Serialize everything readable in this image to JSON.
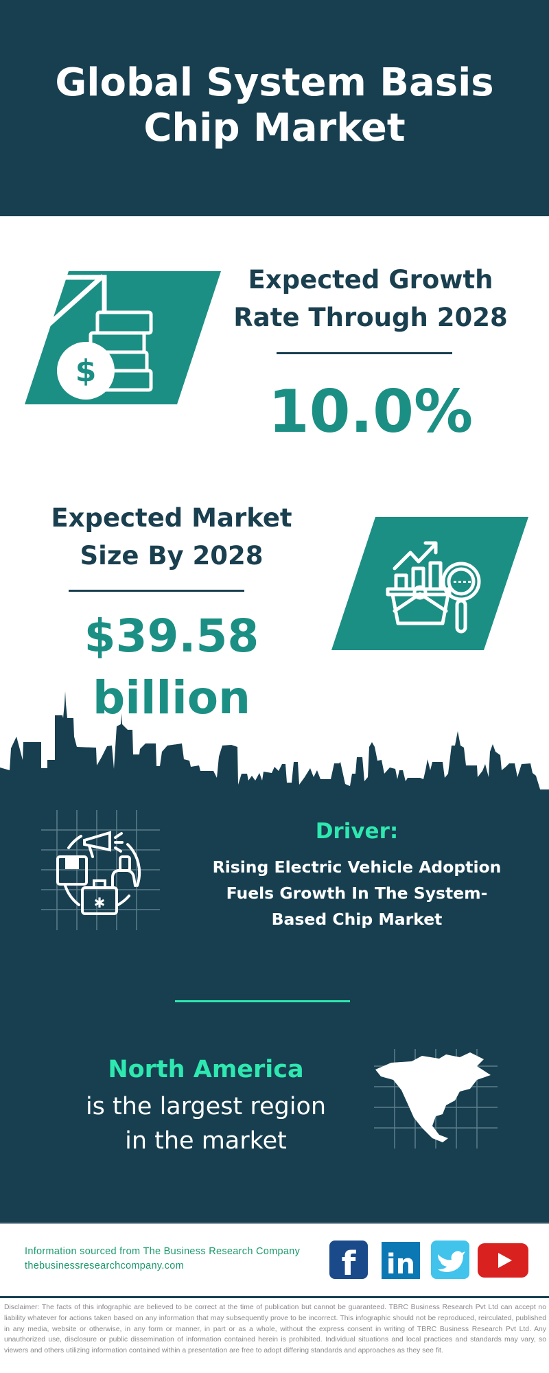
{
  "header": {
    "title_line1": "Global System Basis",
    "title_line2": "Chip Market"
  },
  "growth": {
    "heading_line1": "Expected Growth",
    "heading_line2": "Rate Through 2028",
    "value": "10.0%",
    "icon": "money-growth-icon"
  },
  "market_size": {
    "heading_line1": "Expected Market",
    "heading_line2": "Size By 2028",
    "value": "$39.58 billion",
    "icon": "market-analysis-icon"
  },
  "driver": {
    "label": "Driver:",
    "text_line1": "Rising Electric Vehicle Adoption",
    "text_line2": "Fuels Growth In The System-",
    "text_line3": "Based Chip Market",
    "icon": "marketing-strategy-icon"
  },
  "region": {
    "name": "North America",
    "text_line1": "is the largest region",
    "text_line2": "in the market",
    "icon": "north-america-map-icon"
  },
  "footer": {
    "source": "Information sourced from The Business Research Company",
    "website": "thebusinessresearchcompany.com",
    "social": [
      "facebook",
      "linkedin",
      "twitter",
      "youtube"
    ]
  },
  "disclaimer": "Disclaimer: The facts of this infographic are believed to be correct at the time of publication but cannot be guaranteed. TBRC Business Research Pvt Ltd can accept no liability whatever for actions taken based on any information that may subsequently prove to be incorrect. This infographic should not be reproduced, reirculated, published in any media, website or otherwise, in any form or manner, in part or as a whole, without the express consent in writing of TBRC Business Research Pvt Ltd. Any unauthorized use, disclosure or public dissemination of information contained herein is prohibited. Individual situations and local practices and standards may vary, so viewers and others utilizing information contained within a presentation are free to adopt differing standards and approaches as they see fit.",
  "colors": {
    "dark": "#173f50",
    "teal": "#1c8f84",
    "accent": "#2ee8b0",
    "footer_text": "#1a9a6c"
  }
}
